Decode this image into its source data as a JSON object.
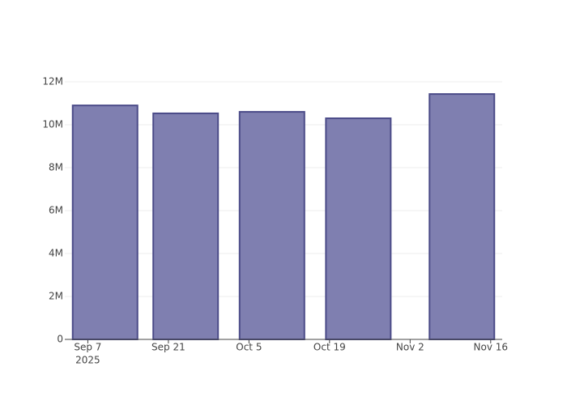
{
  "chart_data": {
    "type": "bar",
    "x": [
      "2025-09-10",
      "2025-09-24",
      "2025-10-09",
      "2025-10-24",
      "2025-11-11"
    ],
    "values": [
      10900000,
      10530000,
      10600000,
      10300000,
      11430000
    ],
    "color": "#7f7fb0",
    "edge_color": "#4b4b88",
    "xlim": [
      "2025-09-03",
      "2025-11-18"
    ],
    "xticks": [
      {
        "value": "2025-09-07",
        "label": "Sep 7"
      },
      {
        "value": "2025-09-21",
        "label": "Sep 21"
      },
      {
        "value": "2025-10-05",
        "label": "Oct 5"
      },
      {
        "value": "2025-10-19",
        "label": "Oct 19"
      },
      {
        "value": "2025-11-02",
        "label": "Nov 2"
      },
      {
        "value": "2025-11-16",
        "label": "Nov 16"
      }
    ],
    "x_year_label": "2025",
    "ylim": [
      0,
      12000000
    ],
    "yticks": [
      {
        "value": 0,
        "label": "0"
      },
      {
        "value": 2000000,
        "label": "2M"
      },
      {
        "value": 4000000,
        "label": "4M"
      },
      {
        "value": 6000000,
        "label": "6M"
      },
      {
        "value": 8000000,
        "label": "8M"
      },
      {
        "value": 10000000,
        "label": "10M"
      },
      {
        "value": 12000000,
        "label": "12M"
      }
    ],
    "grid": true
  }
}
